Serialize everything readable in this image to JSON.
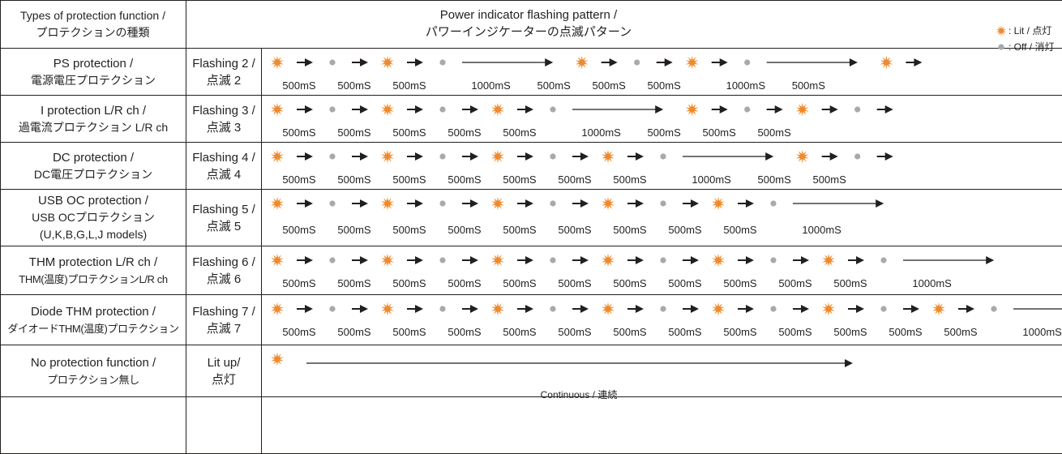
{
  "header": {
    "types_title_en": "Types of protection function /",
    "types_title_jp": "プロテクションの種類",
    "pattern_title_en": "Power indicator flashing pattern /",
    "pattern_title_jp": "パワーインジケーターの点滅パターン"
  },
  "legend": {
    "lit_label": ": Lit / 点灯",
    "off_label": ": Off / 消灯",
    "lit_icon": "starburst-icon",
    "off_icon": "dot-icon"
  },
  "colors": {
    "lit": "#f08a2c",
    "off": "#a7a9ac",
    "line": "#231f20"
  },
  "rows": [
    {
      "type_lines": [
        "PS protection /",
        "電源電圧プロテクション"
      ],
      "flash_lines": [
        "Flashing 2 /",
        "点滅 2"
      ],
      "sequence": [
        "L",
        "A",
        "O",
        "A",
        "L",
        "A",
        "O",
        "LA",
        "L",
        "A",
        "O",
        "A",
        "L",
        "A",
        "O",
        "LA",
        "L",
        "A"
      ],
      "timings": [
        "500mS",
        "500mS",
        "500mS",
        "1000mS",
        "500mS",
        "500mS",
        "500mS",
        "1000mS",
        "500mS"
      ]
    },
    {
      "type_lines": [
        "I protection L/R ch /",
        "過電流プロテクション L/R ch"
      ],
      "flash_lines": [
        "Flashing 3 /",
        "点滅 3"
      ],
      "sequence": [
        "L",
        "A",
        "O",
        "A",
        "L",
        "A",
        "O",
        "A",
        "L",
        "A",
        "O",
        "LA",
        "L",
        "A",
        "O",
        "A",
        "L",
        "A",
        "O",
        "A"
      ],
      "timings": [
        "500mS",
        "500mS",
        "500mS",
        "500mS",
        "500mS",
        "1000mS",
        "500mS",
        "500mS",
        "500mS"
      ]
    },
    {
      "type_lines": [
        "DC protection /",
        "DC電圧プロテクション"
      ],
      "flash_lines": [
        "Flashing 4 /",
        "点滅 4"
      ],
      "sequence": [
        "L",
        "A",
        "O",
        "A",
        "L",
        "A",
        "O",
        "A",
        "L",
        "A",
        "O",
        "A",
        "L",
        "A",
        "O",
        "LA",
        "L",
        "A",
        "O",
        "A"
      ],
      "timings": [
        "500mS",
        "500mS",
        "500mS",
        "500mS",
        "500mS",
        "500mS",
        "500mS",
        "1000mS",
        "500mS",
        "500mS"
      ]
    },
    {
      "type_lines": [
        "USB OC protection /",
        "USB OCプロテクション",
        "(U,K,B,G,L,J models)"
      ],
      "flash_lines": [
        "Flashing 5 /",
        "点滅 5"
      ],
      "sequence": [
        "L",
        "A",
        "O",
        "A",
        "L",
        "A",
        "O",
        "A",
        "L",
        "A",
        "O",
        "A",
        "L",
        "A",
        "O",
        "A",
        "L",
        "A",
        "O",
        "LA"
      ],
      "timings": [
        "500mS",
        "500mS",
        "500mS",
        "500mS",
        "500mS",
        "500mS",
        "500mS",
        "500mS",
        "500mS",
        "1000mS"
      ]
    },
    {
      "type_lines": [
        "THM protection L/R ch /",
        "THM(温度)プロテクションL/R ch"
      ],
      "flash_lines": [
        "Flashing 6 /",
        "点滅 6"
      ],
      "sequence": [
        "L",
        "A",
        "O",
        "A",
        "L",
        "A",
        "O",
        "A",
        "L",
        "A",
        "O",
        "A",
        "L",
        "A",
        "O",
        "A",
        "L",
        "A",
        "O",
        "A",
        "L",
        "A",
        "O",
        "LA"
      ],
      "timings": [
        "500mS",
        "500mS",
        "500mS",
        "500mS",
        "500mS",
        "500mS",
        "500mS",
        "500mS",
        "500mS",
        "500mS",
        "500mS",
        "1000mS"
      ]
    },
    {
      "type_lines": [
        "Diode THM protection /",
        "ダイオードTHM(温度)プロテクション"
      ],
      "flash_lines": [
        "Flashing 7 /",
        "点滅 7"
      ],
      "sequence": [
        "L",
        "A",
        "O",
        "A",
        "L",
        "A",
        "O",
        "A",
        "L",
        "A",
        "O",
        "A",
        "L",
        "A",
        "O",
        "A",
        "L",
        "A",
        "O",
        "A",
        "L",
        "A",
        "O",
        "A",
        "L",
        "A",
        "O",
        "LA"
      ],
      "timings": [
        "500mS",
        "500mS",
        "500mS",
        "500mS",
        "500mS",
        "500mS",
        "500mS",
        "500mS",
        "500mS",
        "500mS",
        "500mS",
        "500mS",
        "500mS",
        "1000mS"
      ]
    },
    {
      "type_lines": [
        "No protection function /",
        "プロテクション無し"
      ],
      "flash_lines": [
        "Lit up/",
        "点灯"
      ],
      "sequence": [
        "L",
        "LA"
      ],
      "timings": [
        "Continuous / 連続"
      ]
    }
  ]
}
